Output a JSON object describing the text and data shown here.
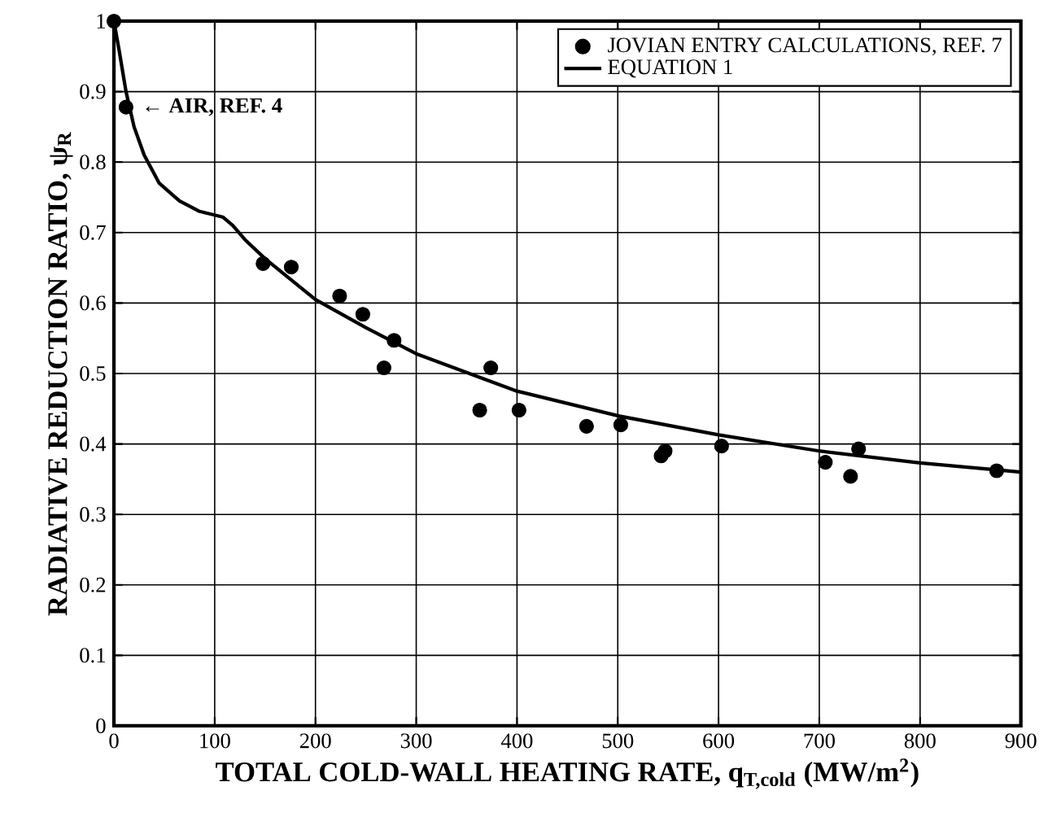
{
  "chart_data": {
    "type": "scatter",
    "xlabel": "TOTAL COLD-WALL HEATING RATE, q$_{T,cold}$ (MW/m$^{2}$)",
    "ylabel": "RADIATIVE REDUCTION RATIO, ψ$_{R}$",
    "xlim": [
      0,
      900
    ],
    "ylim": [
      0,
      1
    ],
    "xticks": [
      0,
      100,
      200,
      300,
      400,
      500,
      600,
      700,
      800,
      900
    ],
    "yticks": [
      0,
      0.1,
      0.2,
      0.3,
      0.4,
      0.5,
      0.6,
      0.7,
      0.8,
      0.9,
      1
    ],
    "grid": true,
    "legend": "top right",
    "series": [
      {
        "name": "JOVIAN ENTRY CALCULATIONS, REF. 7",
        "marker": "circle",
        "color": "#000000",
        "x": [
          0,
          12,
          148,
          176,
          224,
          247,
          268,
          278,
          363,
          374,
          402,
          469,
          503,
          543,
          547,
          603,
          706,
          731,
          739,
          876
        ],
        "values": [
          1.0,
          0.878,
          0.656,
          0.651,
          0.61,
          0.584,
          0.508,
          0.547,
          0.448,
          0.508,
          0.448,
          0.425,
          0.427,
          0.383,
          0.39,
          0.397,
          0.374,
          0.354,
          0.393,
          0.362
        ]
      },
      {
        "name": "EQUATION 1",
        "type": "line",
        "marker": "none",
        "line_style": "solid",
        "color": "#000000",
        "x": [
          0,
          5,
          12,
          20,
          30,
          45,
          65,
          85,
          108,
          118,
          130,
          150,
          200,
          250,
          300,
          400,
          500,
          600,
          700,
          800,
          900
        ],
        "values": [
          1.0,
          0.96,
          0.9,
          0.85,
          0.81,
          0.77,
          0.745,
          0.73,
          0.722,
          0.71,
          0.69,
          0.663,
          0.605,
          0.565,
          0.528,
          0.475,
          0.44,
          0.413,
          0.39,
          0.373,
          0.36
        ]
      }
    ],
    "annotations": [
      {
        "text": "← AIR, REF. 4",
        "x": 12,
        "y": 0.878
      }
    ]
  }
}
